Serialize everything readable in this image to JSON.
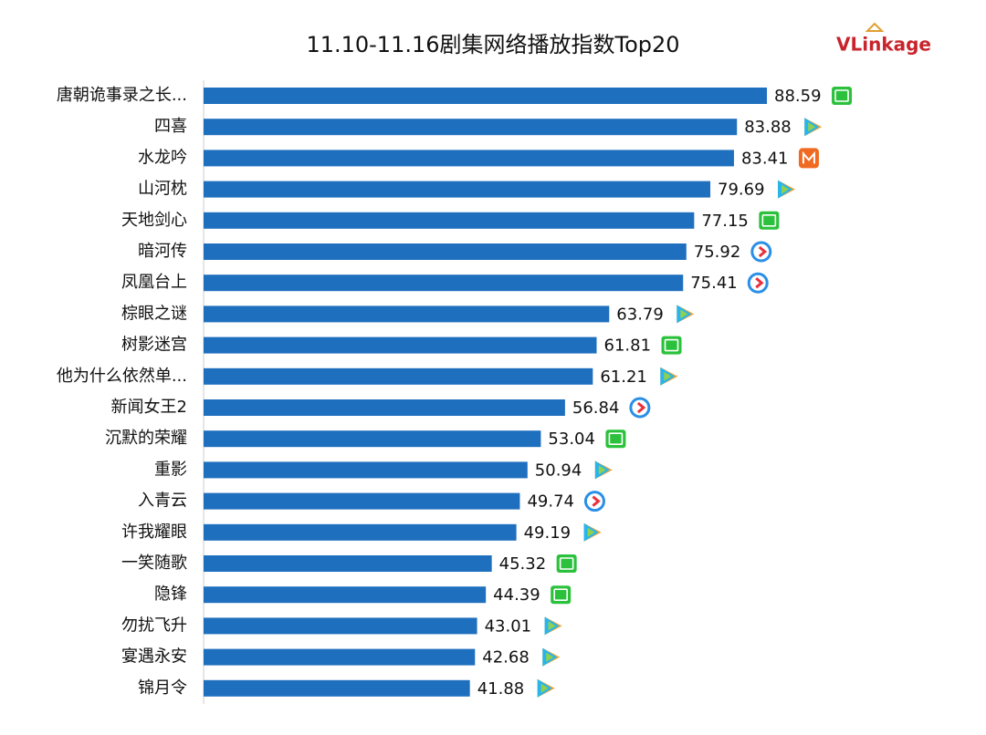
{
  "chart_data": {
    "type": "bar",
    "orientation": "horizontal",
    "title": "11.10-11.16剧集网络播放指数Top20",
    "logo": "VLinkage",
    "categories": [
      "唐朝诡事录之长...",
      "四喜",
      "水龙吟",
      "山河枕",
      "天地剑心",
      "暗河传",
      "凤凰台上",
      "棕眼之谜",
      "树影迷宫",
      "他为什么依然单...",
      "新闻女王2",
      "沉默的荣耀",
      "重影",
      "入青云",
      "许我耀眼",
      "一笑随歌",
      "隐锋",
      "勿扰飞升",
      "宴遇永安",
      "锦月令"
    ],
    "values": [
      88.59,
      83.88,
      83.41,
      79.69,
      77.15,
      75.92,
      75.41,
      63.79,
      61.81,
      61.21,
      56.84,
      53.04,
      50.94,
      49.74,
      49.19,
      45.32,
      44.39,
      43.01,
      42.68,
      41.88
    ],
    "color": "#1f6fbf",
    "xlim": [
      0,
      100
    ]
  }
}
